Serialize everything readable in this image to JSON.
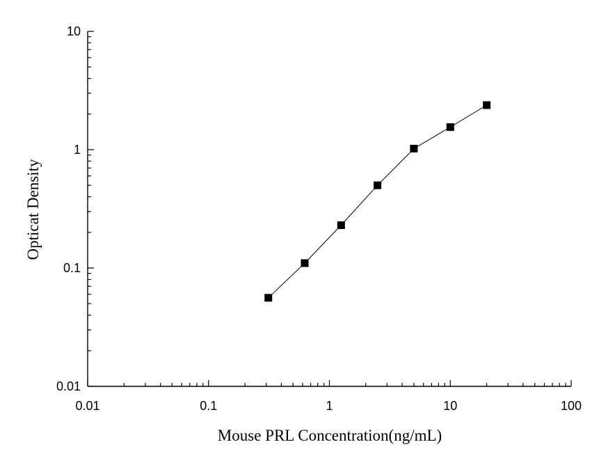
{
  "chart_data": {
    "type": "scatter",
    "xlabel": "Mouse PRL  Concentration(ng/mL)",
    "ylabel": "Opticat Density",
    "xscale": "log",
    "yscale": "log",
    "xlim": [
      0.01,
      100
    ],
    "ylim": [
      0.01,
      10
    ],
    "x_ticks": [
      "0.01",
      "0.1",
      "1",
      "10",
      "100"
    ],
    "y_ticks": [
      "0.01",
      "0.1",
      "1",
      "10"
    ],
    "grid": false,
    "marker": "square",
    "connected": true,
    "series": [
      {
        "x": [
          0.3125,
          0.625,
          1.25,
          2.5,
          5,
          10,
          20
        ],
        "y": [
          0.056,
          0.11,
          0.23,
          0.5,
          1.02,
          1.55,
          2.38
        ]
      }
    ]
  }
}
